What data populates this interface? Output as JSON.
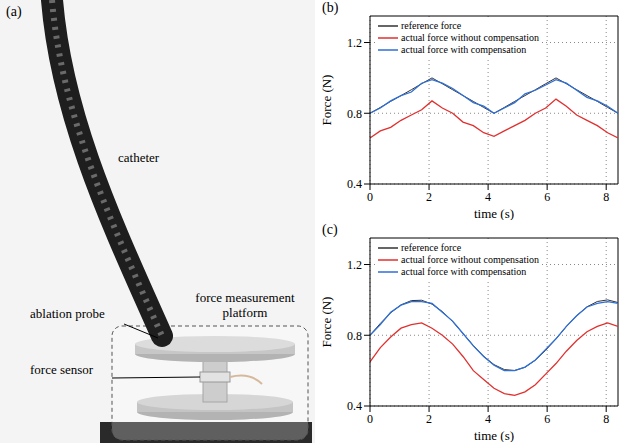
{
  "photo_panel": {
    "label": "(a)",
    "annotations": {
      "catheter": "catheter",
      "probe": "ablation probe",
      "platform": "force measurement platform",
      "sensor": "force sensor"
    }
  },
  "chart_data": [
    {
      "type": "line",
      "title": "(b)",
      "x_label": "time (s)",
      "y_label": "Force (N)",
      "x": [
        0,
        0.35,
        0.7,
        1.05,
        1.4,
        1.75,
        2.1,
        2.45,
        2.8,
        3.15,
        3.5,
        3.85,
        4.2,
        4.55,
        4.9,
        5.25,
        5.6,
        5.95,
        6.3,
        6.65,
        7,
        7.35,
        7.7,
        8.05,
        8.4
      ],
      "series": [
        {
          "name": "reference force",
          "color": "#333333",
          "values": [
            0.8,
            0.833,
            0.867,
            0.9,
            0.933,
            0.967,
            1.0,
            0.967,
            0.933,
            0.9,
            0.867,
            0.833,
            0.8,
            0.833,
            0.867,
            0.9,
            0.933,
            0.967,
            1.0,
            0.967,
            0.933,
            0.9,
            0.867,
            0.833,
            0.8
          ]
        },
        {
          "name": "actual force without compensation",
          "color": "#e0302f",
          "values": [
            0.66,
            0.7,
            0.72,
            0.76,
            0.79,
            0.82,
            0.87,
            0.83,
            0.8,
            0.75,
            0.73,
            0.69,
            0.67,
            0.7,
            0.73,
            0.76,
            0.8,
            0.83,
            0.88,
            0.84,
            0.79,
            0.76,
            0.73,
            0.69,
            0.66
          ]
        },
        {
          "name": "actual force with compensation",
          "color": "#2f6fd6",
          "values": [
            0.8,
            0.83,
            0.87,
            0.9,
            0.92,
            0.97,
            0.99,
            0.97,
            0.94,
            0.9,
            0.86,
            0.84,
            0.8,
            0.83,
            0.86,
            0.91,
            0.93,
            0.96,
            0.99,
            0.97,
            0.93,
            0.89,
            0.87,
            0.84,
            0.8
          ]
        }
      ],
      "xlim": [
        0,
        8.4
      ],
      "xticks": [
        0,
        2,
        4,
        6,
        8
      ],
      "ylim": [
        0.4,
        1.35
      ],
      "yticks": [
        0.4,
        0.8,
        1.2
      ],
      "grid": true,
      "legend": "upper left"
    },
    {
      "type": "line",
      "title": "(c)",
      "x_label": "time (s)",
      "y_label": "Force (N)",
      "x": [
        0,
        0.35,
        0.7,
        1.05,
        1.4,
        1.75,
        2.1,
        2.45,
        2.8,
        3.15,
        3.5,
        3.85,
        4.2,
        4.55,
        4.9,
        5.25,
        5.6,
        5.95,
        6.3,
        6.65,
        7,
        7.35,
        7.7,
        8.05,
        8.4
      ],
      "series": [
        {
          "name": "reference force",
          "color": "#333333",
          "values": [
            0.8,
            0.867,
            0.927,
            0.972,
            0.996,
            0.998,
            0.976,
            0.934,
            0.877,
            0.81,
            0.742,
            0.681,
            0.634,
            0.606,
            0.601,
            0.619,
            0.659,
            0.715,
            0.78,
            0.849,
            0.911,
            0.961,
            0.991,
            1.0,
            0.985
          ]
        },
        {
          "name": "actual force without compensation",
          "color": "#e0302f",
          "values": [
            0.65,
            0.73,
            0.79,
            0.84,
            0.86,
            0.87,
            0.84,
            0.8,
            0.75,
            0.68,
            0.6,
            0.55,
            0.5,
            0.47,
            0.46,
            0.48,
            0.52,
            0.58,
            0.64,
            0.71,
            0.77,
            0.82,
            0.85,
            0.87,
            0.85
          ]
        },
        {
          "name": "actual force with compensation",
          "color": "#2f6fd6",
          "values": [
            0.8,
            0.86,
            0.93,
            0.97,
            0.99,
            0.99,
            0.98,
            0.93,
            0.88,
            0.81,
            0.74,
            0.68,
            0.63,
            0.6,
            0.6,
            0.62,
            0.66,
            0.72,
            0.78,
            0.85,
            0.91,
            0.96,
            0.98,
            0.99,
            0.98
          ]
        }
      ],
      "xlim": [
        0,
        8.4
      ],
      "xticks": [
        0,
        2,
        4,
        6,
        8
      ],
      "ylim": [
        0.4,
        1.35
      ],
      "yticks": [
        0.4,
        0.8,
        1.2
      ],
      "grid": true,
      "legend": "upper left"
    }
  ]
}
